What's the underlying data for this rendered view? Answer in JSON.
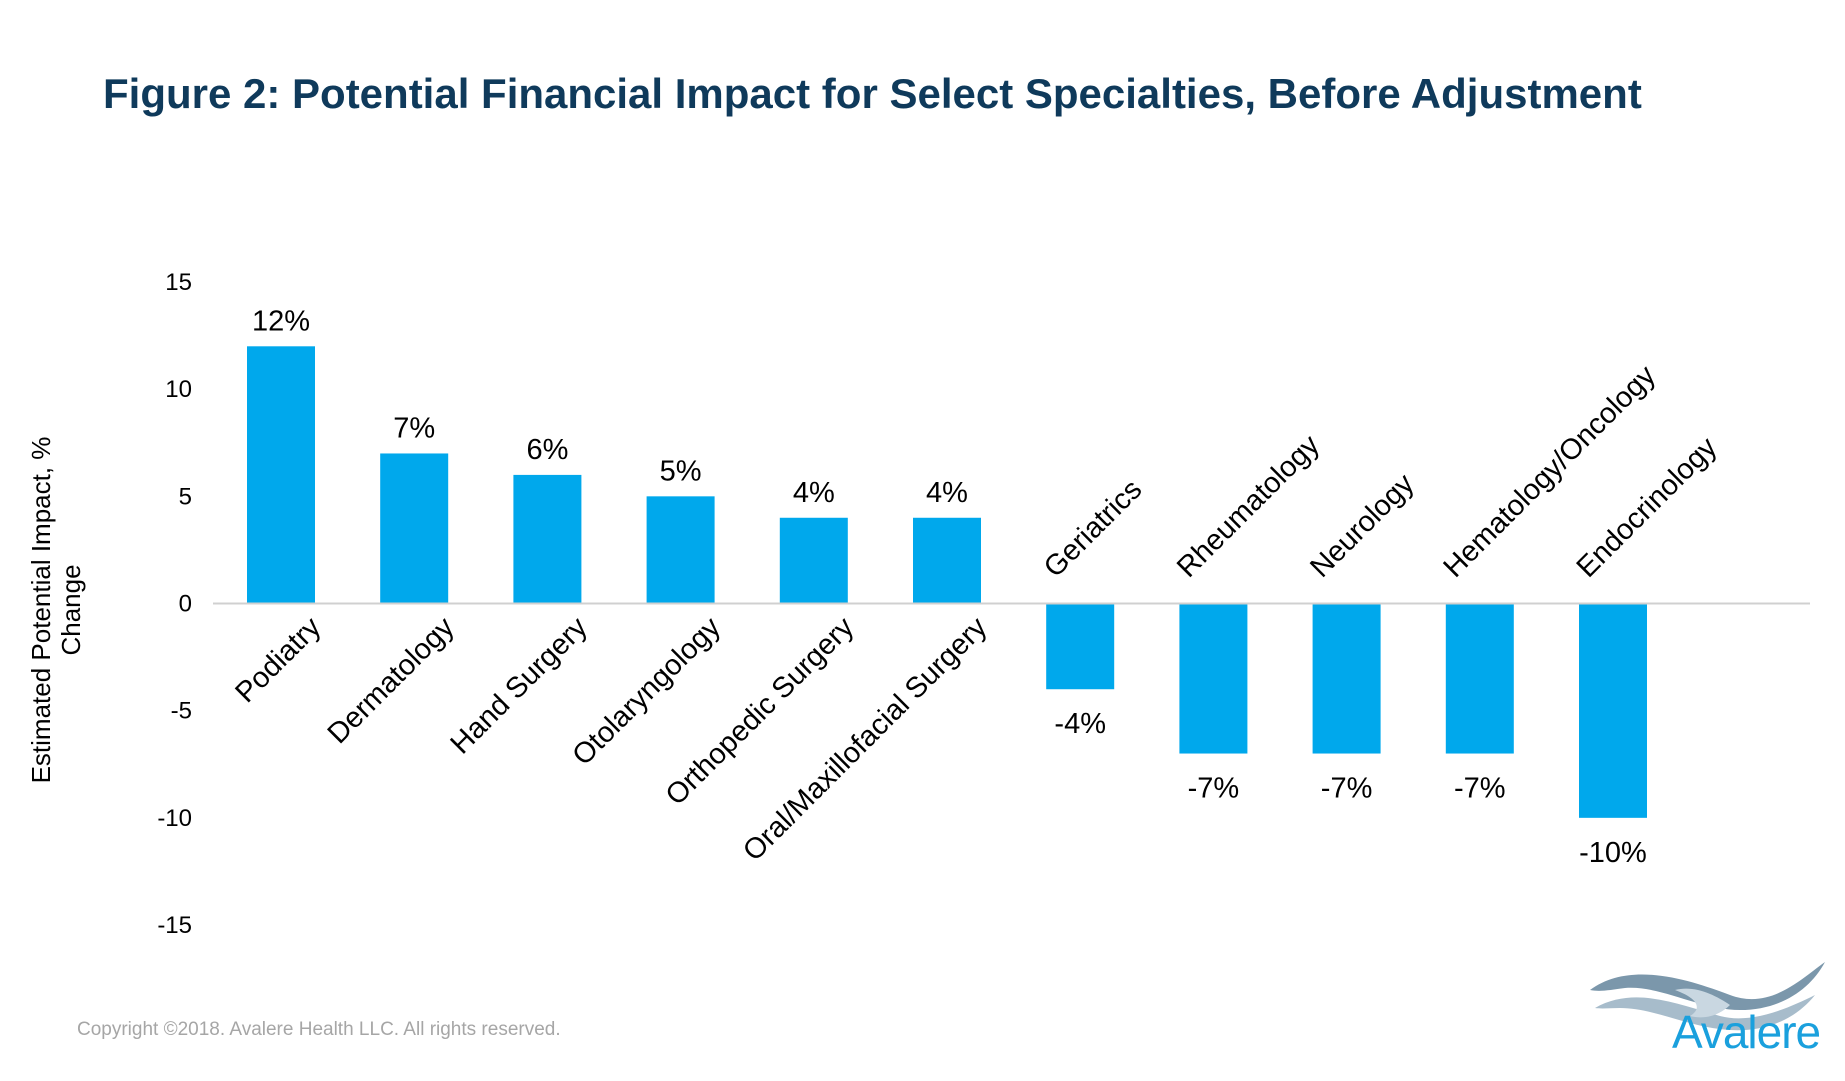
{
  "title": "Figure 2: Potential Financial Impact for Select Specialties, Before Adjustment",
  "copyright": "Copyright ©2018. Avalere Health LLC. All rights reserved.",
  "logo": {
    "text": "Avalere",
    "icon": "avalere-wave-logo-icon"
  },
  "colors": {
    "bar": "#00a8ec",
    "title": "#0f3a5b",
    "axis": "#d0d0d0",
    "text": "#000000"
  },
  "chart_data": {
    "type": "bar",
    "title": "",
    "xlabel": "",
    "ylabel": "Estimated  Potential Impact,  % Change",
    "ylabel_lines": [
      "Estimated  Potential Impact,  %",
      "Change"
    ],
    "ylim": [
      -15,
      15
    ],
    "yticks": [
      15,
      10,
      5,
      0,
      -5,
      -10,
      -15
    ],
    "grid": false,
    "categories": [
      "Podiatry",
      "Dermatology",
      "Hand Surgery",
      "Otolaryngology",
      "Orthopedic Surgery",
      "Oral/Maxillofacial Surgery",
      "Geriatrics",
      "Rheumatology",
      "Neurology",
      "Hematology/Oncology",
      "Endocrinology"
    ],
    "values": [
      12,
      7,
      6,
      5,
      4,
      4,
      -4,
      -7,
      -7,
      -7,
      -10
    ],
    "data_labels": [
      "12%",
      "7%",
      "6%",
      "5%",
      "4%",
      "4%",
      "-4%",
      "-7%",
      "-7%",
      "-7%",
      "-10%"
    ]
  }
}
